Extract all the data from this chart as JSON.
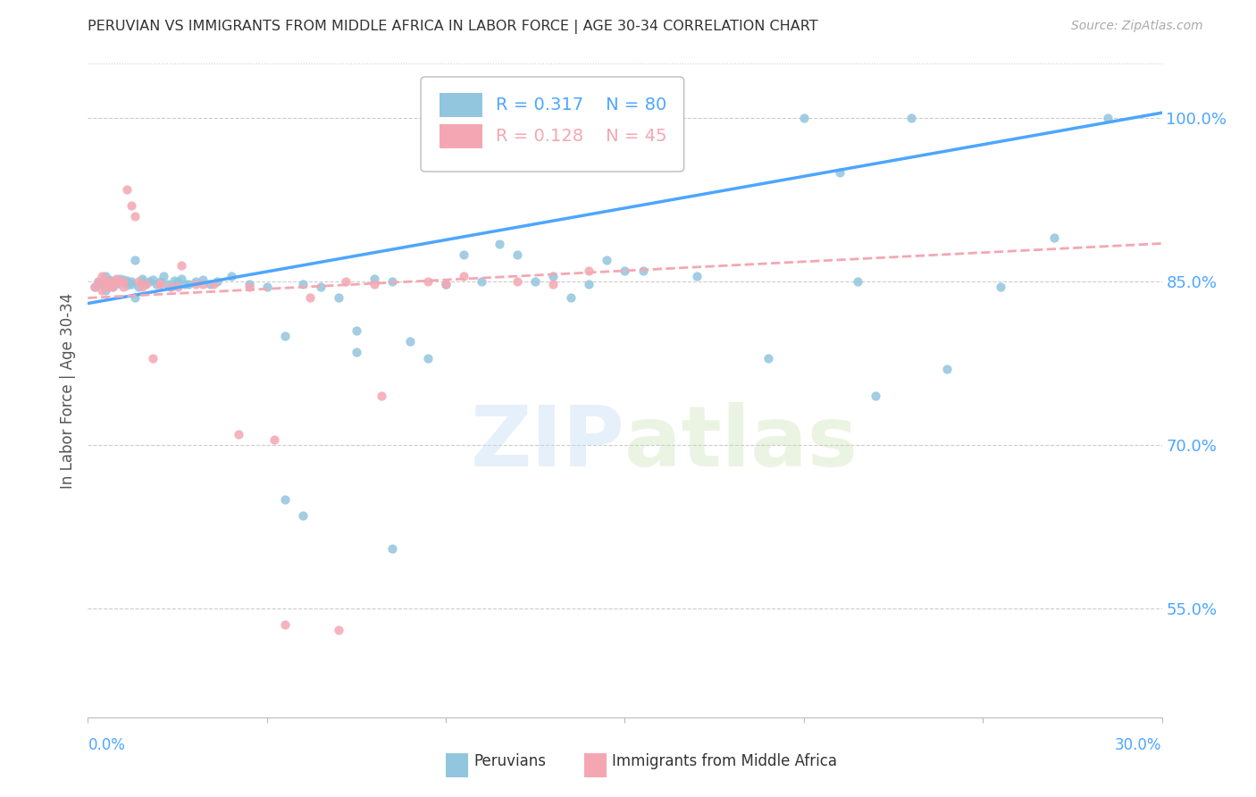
{
  "title": "PERUVIAN VS IMMIGRANTS FROM MIDDLE AFRICA IN LABOR FORCE | AGE 30-34 CORRELATION CHART",
  "source": "Source: ZipAtlas.com",
  "ylabel": "In Labor Force | Age 30-34",
  "xlim": [
    0.0,
    30.0
  ],
  "ylim": [
    45.0,
    105.0
  ],
  "r_blue": 0.317,
  "n_blue": 80,
  "r_pink": 0.128,
  "n_pink": 45,
  "blue_color": "#92c5de",
  "pink_color": "#f4a7b2",
  "trendline_blue": "#4da6ff",
  "trendline_pink": "#f4a7b2",
  "axis_color": "#4da6ff",
  "grid_color": "#cccccc",
  "ytick_vals": [
    55.0,
    70.0,
    85.0,
    100.0
  ],
  "blue_line_x0": 0.0,
  "blue_line_x1": 30.0,
  "blue_line_y0": 83.0,
  "blue_line_y1": 100.5,
  "pink_line_x0": 0.0,
  "pink_line_x1": 30.0,
  "pink_line_y0": 83.5,
  "pink_line_y1": 88.5,
  "blue_scatter_x": [
    0.2,
    0.3,
    0.4,
    0.5,
    0.5,
    0.6,
    0.6,
    0.7,
    0.7,
    0.8,
    0.8,
    0.9,
    0.9,
    1.0,
    1.0,
    1.1,
    1.1,
    1.2,
    1.2,
    1.3,
    1.3,
    1.4,
    1.5,
    1.5,
    1.6,
    1.7,
    1.8,
    1.9,
    2.0,
    2.1,
    2.2,
    2.3,
    2.4,
    2.5,
    2.6,
    2.7,
    2.8,
    3.0,
    3.2,
    3.4,
    3.6,
    4.0,
    4.5,
    5.0,
    5.5,
    6.0,
    6.5,
    7.0,
    7.5,
    8.0,
    8.5,
    9.0,
    9.5,
    10.0,
    11.0,
    12.0,
    13.0,
    14.0,
    15.5,
    17.0,
    19.0,
    21.0,
    22.0,
    24.0,
    25.5,
    27.0,
    5.5,
    6.0,
    7.5,
    8.5,
    10.5,
    11.5,
    12.5,
    13.5,
    14.5,
    15.0,
    20.0,
    21.5,
    23.0,
    28.5
  ],
  "blue_scatter_y": [
    84.5,
    85.0,
    84.8,
    84.2,
    85.5,
    84.8,
    85.2,
    85.0,
    84.5,
    85.0,
    84.8,
    85.3,
    84.9,
    85.0,
    85.2,
    84.7,
    85.1,
    85.0,
    84.8,
    83.5,
    87.0,
    84.5,
    85.0,
    85.3,
    84.8,
    85.0,
    85.2,
    84.8,
    85.0,
    85.5,
    84.8,
    84.5,
    85.1,
    85.0,
    85.3,
    84.8,
    84.8,
    85.0,
    85.2,
    84.8,
    85.0,
    85.5,
    84.8,
    84.5,
    80.0,
    84.8,
    84.5,
    83.5,
    80.5,
    85.3,
    85.0,
    79.5,
    78.0,
    84.8,
    85.0,
    87.5,
    85.5,
    84.8,
    86.0,
    85.5,
    78.0,
    95.0,
    74.5,
    77.0,
    84.5,
    89.0,
    65.0,
    63.5,
    78.5,
    60.5,
    87.5,
    88.5,
    85.0,
    83.5,
    87.0,
    86.0,
    100.0,
    85.0,
    100.0,
    100.0
  ],
  "pink_scatter_x": [
    0.2,
    0.3,
    0.4,
    0.4,
    0.5,
    0.5,
    0.6,
    0.6,
    0.7,
    0.7,
    0.8,
    0.8,
    0.9,
    1.0,
    1.0,
    1.1,
    1.2,
    1.3,
    1.4,
    1.5,
    1.6,
    1.8,
    2.0,
    2.3,
    2.6,
    3.0,
    3.5,
    4.2,
    5.2,
    6.2,
    7.2,
    8.2,
    9.5,
    10.5,
    12.0,
    14.0,
    2.0,
    2.5,
    3.2,
    4.5,
    5.5,
    7.0,
    8.0,
    10.0,
    13.0
  ],
  "pink_scatter_y": [
    84.5,
    85.0,
    84.2,
    85.5,
    84.8,
    85.2,
    84.5,
    85.0,
    84.5,
    84.8,
    85.3,
    84.9,
    85.0,
    85.0,
    84.5,
    93.5,
    92.0,
    91.0,
    85.0,
    84.5,
    84.8,
    78.0,
    84.8,
    84.5,
    86.5,
    84.8,
    84.8,
    71.0,
    70.5,
    83.5,
    85.0,
    74.5,
    85.0,
    85.5,
    85.0,
    86.0,
    84.8,
    84.5,
    84.8,
    84.5,
    53.5,
    53.0,
    84.8,
    84.8,
    84.8
  ]
}
